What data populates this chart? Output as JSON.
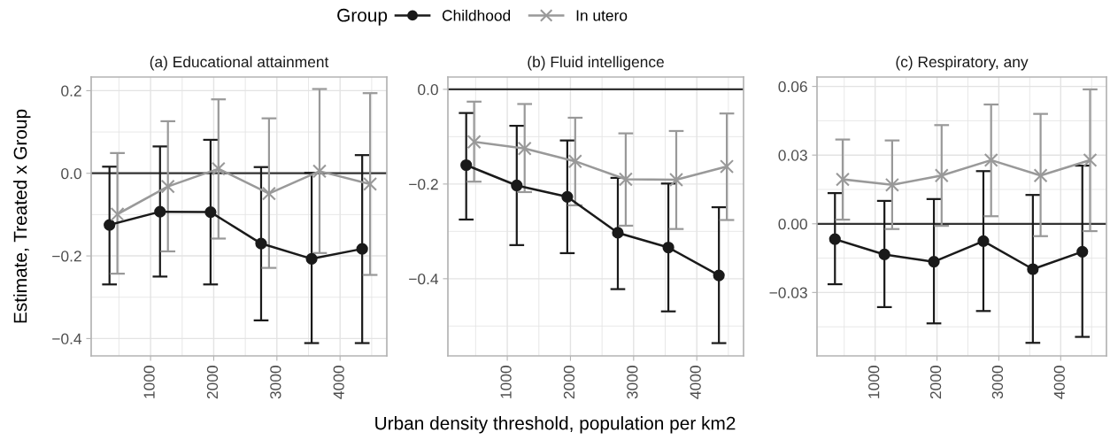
{
  "chart_data": [
    {
      "type": "line",
      "title": "(a) Educational attainment",
      "ylabel": "Estimate, Treated x Group",
      "legend": "top",
      "legend_title": "Group",
      "grid": true,
      "xlim": [
        60,
        4740
      ],
      "xticks": [
        1000,
        2000,
        3000,
        4000
      ],
      "ylim": [
        -0.442,
        0.233
      ],
      "yticks": [
        {
          "value": -0.4,
          "label": "−0.4"
        },
        {
          "value": -0.2,
          "label": "−0.2"
        },
        {
          "value": 0.0,
          "label": "0.0"
        },
        {
          "value": 0.2,
          "label": "0.2"
        }
      ],
      "ref_lines": [
        {
          "axis": "y",
          "value": 0,
          "color": "#333333"
        }
      ],
      "series": [
        {
          "name": "Childhood",
          "color": "#1a1a1a",
          "marker": "circle",
          "x": [
            350,
            1150,
            1950,
            2750,
            3550,
            4350
          ],
          "values": [
            -0.125,
            -0.093,
            -0.094,
            -0.17,
            -0.207,
            -0.183
          ],
          "errors": [
            [
              -0.269,
              0.016
            ],
            [
              -0.25,
              0.065
            ],
            [
              -0.269,
              0.081
            ],
            [
              -0.356,
              0.015
            ],
            [
              -0.411,
              0.001
            ],
            [
              -0.411,
              0.044
            ]
          ]
        },
        {
          "name": "In utero",
          "color": "#999999",
          "marker": "cross",
          "x": [
            475,
            1275,
            2075,
            2875,
            3675,
            4475
          ],
          "values": [
            -0.099,
            -0.032,
            0.011,
            -0.049,
            0.005,
            -0.026
          ],
          "errors": [
            [
              -0.243,
              0.049
            ],
            [
              -0.189,
              0.126
            ],
            [
              -0.158,
              0.179
            ],
            [
              -0.229,
              0.133
            ],
            [
              -0.193,
              0.204
            ],
            [
              -0.246,
              0.194
            ]
          ]
        }
      ]
    },
    {
      "type": "line",
      "title": "(b) Fluid intelligence",
      "xlabel": "Urban density threshold, population per km2",
      "grid": true,
      "xlim": [
        60,
        4740
      ],
      "xticks": [
        1000,
        2000,
        3000,
        4000
      ],
      "ylim": [
        -0.563,
        0.026
      ],
      "yticks": [
        {
          "value": -0.4,
          "label": "−0.4"
        },
        {
          "value": -0.2,
          "label": "−0.2"
        },
        {
          "value": 0.0,
          "label": "0.0"
        }
      ],
      "ref_lines": [
        {
          "axis": "y",
          "value": 0,
          "color": "#333333"
        }
      ],
      "series": [
        {
          "name": "Childhood",
          "color": "#1a1a1a",
          "marker": "circle",
          "x": [
            350,
            1150,
            1950,
            2750,
            3550,
            4350
          ],
          "values": [
            -0.16,
            -0.203,
            -0.227,
            -0.303,
            -0.334,
            -0.393
          ],
          "errors": [
            [
              -0.275,
              -0.05
            ],
            [
              -0.329,
              -0.077
            ],
            [
              -0.346,
              -0.108
            ],
            [
              -0.422,
              -0.187
            ],
            [
              -0.469,
              -0.199
            ],
            [
              -0.536,
              -0.249
            ]
          ]
        },
        {
          "name": "In utero",
          "color": "#999999",
          "marker": "cross",
          "x": [
            475,
            1275,
            2075,
            2875,
            3675,
            4475
          ],
          "values": [
            -0.111,
            -0.125,
            -0.152,
            -0.19,
            -0.191,
            -0.163
          ],
          "errors": [
            [
              -0.195,
              -0.026
            ],
            [
              -0.217,
              -0.031
            ],
            [
              -0.245,
              -0.06
            ],
            [
              -0.288,
              -0.093
            ],
            [
              -0.295,
              -0.088
            ],
            [
              -0.276,
              -0.051
            ]
          ]
        }
      ]
    },
    {
      "type": "line",
      "title": "(c) Respiratory, any",
      "grid": true,
      "xlim": [
        60,
        4740
      ],
      "xticks": [
        1000,
        2000,
        3000,
        4000
      ],
      "ylim": [
        -0.0577,
        0.0641
      ],
      "yticks": [
        {
          "value": -0.03,
          "label": "−0.03"
        },
        {
          "value": 0.0,
          "label": "0.00"
        },
        {
          "value": 0.03,
          "label": "0.03"
        },
        {
          "value": 0.06,
          "label": "0.06"
        }
      ],
      "ref_lines": [
        {
          "axis": "y",
          "value": 0,
          "color": "#333333"
        }
      ],
      "series": [
        {
          "name": "Childhood",
          "color": "#1a1a1a",
          "marker": "circle",
          "x": [
            350,
            1150,
            1950,
            2750,
            3550,
            4350
          ],
          "values": [
            -0.0067,
            -0.0134,
            -0.0166,
            -0.0076,
            -0.0198,
            -0.0122
          ],
          "errors": [
            [
              -0.0264,
              0.0134
            ],
            [
              -0.0364,
              0.01
            ],
            [
              -0.0435,
              0.0108
            ],
            [
              -0.0381,
              0.023
            ],
            [
              -0.052,
              0.0126
            ],
            [
              -0.0494,
              0.0254
            ]
          ]
        },
        {
          "name": "In utero",
          "color": "#999999",
          "marker": "cross",
          "x": [
            475,
            1275,
            2075,
            2875,
            3675,
            4475
          ],
          "values": [
            0.0194,
            0.017,
            0.0211,
            0.0278,
            0.0211,
            0.0278
          ],
          "errors": [
            [
              0.0018,
              0.0368
            ],
            [
              -0.0023,
              0.0364
            ],
            [
              -0.0009,
              0.0431
            ],
            [
              0.0033,
              0.0521
            ],
            [
              -0.0054,
              0.048
            ],
            [
              -0.0032,
              0.0587
            ]
          ]
        }
      ]
    }
  ]
}
